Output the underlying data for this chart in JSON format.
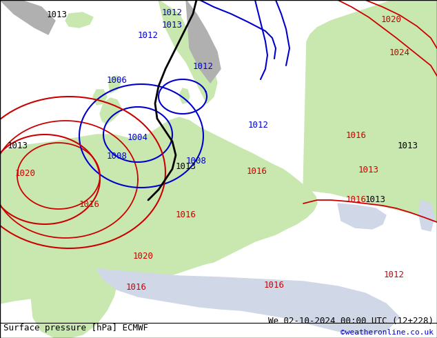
{
  "title_left": "Surface pressure [hPa] ECMWF",
  "title_right": "We 02-10-2024 00:00 UTC (12+228)",
  "credit": "©weatheronline.co.uk",
  "bg_color": "#d0d8e8",
  "land_color": "#c8e8b0",
  "water_color": "#d0d8e8",
  "mountain_color": "#b0b0b0",
  "font_size_labels": 9,
  "font_size_bottom": 9
}
